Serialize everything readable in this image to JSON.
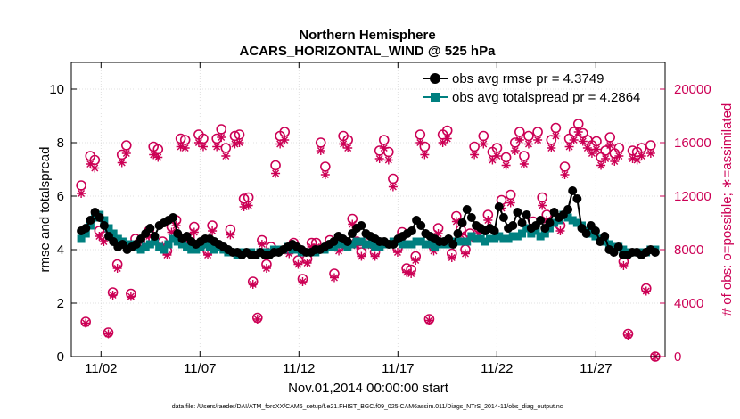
{
  "chart_data": {
    "type": "line",
    "title": "Northern Hemisphere",
    "subtitle": "ACARS_HORIZONTAL_WIND @ 525 hPa",
    "xlabel": "Nov.01,2014 00:00:00 start",
    "ylabel": "rmse and totalspread",
    "y2label": "# of obs: o=possible; ∗=assimilated",
    "footer": "data file: /Users/raeder/DAI/ATM_forcXX/CAM6_setup/f.e21.FHIST_BGC.f09_025.CAM6assim.011/Diags_NTrS_2014-11/obs_diag_output.nc",
    "xlim": [
      0.5,
      30.5
    ],
    "ylim": [
      0,
      11
    ],
    "y2lim": [
      0,
      22000
    ],
    "x_ticks": [
      2,
      7,
      12,
      17,
      22,
      27
    ],
    "x_tick_labels": [
      "11/02",
      "11/07",
      "11/12",
      "11/17",
      "11/22",
      "11/27"
    ],
    "y_ticks": [
      0,
      2,
      4,
      6,
      8,
      10
    ],
    "y_tick_labels": [
      "0",
      "2",
      "4",
      "6",
      "8",
      "10"
    ],
    "y2_ticks": [
      0,
      4000,
      8000,
      12000,
      16000,
      20000
    ],
    "y2_tick_labels": [
      "0",
      "4000",
      "8000",
      "12000",
      "16000",
      "20000"
    ],
    "grid": true,
    "legend_position": "top-right",
    "colors": {
      "rmse": "#000000",
      "spread": "#008080",
      "obs": "#cc0055"
    },
    "series": [
      {
        "name": "obs avg rmse pr = 4.3749",
        "marker": "circle",
        "axis": "left",
        "values": [
          4.7,
          4.8,
          5.1,
          5.4,
          5.2,
          4.9,
          4.5,
          4.3,
          4.1,
          4.2,
          4.0,
          4.1,
          4.2,
          4.4,
          4.6,
          4.8,
          4.5,
          4.9,
          5.0,
          5.1,
          5.2,
          4.6,
          4.4,
          4.5,
          4.3,
          4.2,
          4.3,
          4.4,
          4.4,
          4.3,
          4.2,
          4.1,
          4.0,
          3.9,
          3.9,
          3.8,
          3.9,
          3.8,
          3.8,
          3.9,
          3.8,
          3.8,
          3.9,
          3.9,
          4.0,
          4.1,
          4.2,
          4.1,
          4.0,
          3.9,
          3.9,
          4.0,
          4.0,
          4.1,
          4.2,
          4.3,
          4.5,
          4.4,
          4.3,
          4.6,
          4.8,
          4.9,
          4.6,
          4.5,
          4.4,
          4.3,
          4.3,
          4.2,
          4.2,
          4.4,
          4.5,
          4.6,
          4.7,
          5.1,
          4.9,
          4.6,
          4.5,
          4.4,
          4.3,
          4.3,
          4.4,
          4.2,
          4.6,
          5.0,
          5.5,
          5.2,
          4.9,
          4.8,
          4.7,
          4.8,
          4.7,
          5.6,
          5.2,
          4.8,
          4.9,
          5.4,
          5.0,
          5.3,
          4.8,
          4.9,
          5.1,
          4.8,
          5.0,
          5.4,
          5.2,
          5.3,
          5.5,
          6.2,
          5.9,
          4.8,
          4.6,
          4.9,
          4.7,
          4.3,
          4.5,
          4.0,
          3.9,
          4.1,
          3.8,
          3.8,
          3.9,
          3.9,
          3.8,
          3.9,
          4.0,
          3.9
        ]
      },
      {
        "name": "obs avg totalspread pr = 4.2864",
        "marker": "square",
        "axis": "left",
        "values": [
          4.4,
          4.6,
          4.9,
          5.2,
          5.3,
          5.1,
          4.8,
          4.6,
          4.4,
          4.3,
          4.2,
          4.2,
          4.1,
          4.0,
          4.1,
          4.2,
          4.3,
          4.1,
          4.0,
          4.2,
          4.4,
          4.3,
          4.2,
          4.1,
          4.0,
          4.0,
          4.1,
          4.2,
          4.1,
          4.0,
          4.1,
          4.0,
          3.9,
          3.9,
          3.8,
          3.9,
          3.9,
          3.9,
          3.8,
          3.9,
          3.9,
          3.9,
          4.0,
          4.0,
          4.0,
          4.1,
          4.0,
          4.0,
          3.9,
          3.9,
          3.9,
          3.9,
          4.0,
          4.0,
          4.1,
          4.1,
          4.2,
          4.2,
          4.1,
          4.2,
          4.3,
          4.3,
          4.2,
          4.2,
          4.1,
          4.1,
          4.2,
          4.2,
          4.3,
          4.3,
          4.2,
          4.2,
          4.2,
          4.3,
          4.3,
          4.2,
          4.2,
          4.1,
          4.2,
          4.2,
          4.2,
          4.3,
          4.3,
          4.3,
          4.3,
          4.5,
          4.4,
          4.4,
          4.3,
          4.4,
          4.4,
          4.5,
          4.4,
          4.4,
          4.5,
          4.5,
          4.6,
          4.8,
          4.6,
          4.7,
          4.5,
          4.6,
          4.8,
          5.0,
          5.1,
          5.3,
          5.2,
          5.1,
          5.0,
          4.9,
          4.7,
          4.6,
          4.5,
          4.4,
          4.3,
          4.2,
          4.1,
          4.1,
          4.0,
          3.9,
          3.9,
          3.9,
          3.9,
          3.9,
          4.0,
          4.0
        ]
      },
      {
        "name": "obs possible",
        "marker": "open-circle",
        "axis": "right",
        "values": [
          12800,
          2600,
          15000,
          14700,
          9400,
          9000,
          1800,
          4800,
          6900,
          15100,
          15800,
          4700,
          8800,
          8600,
          8700,
          9400,
          15700,
          15500,
          8600,
          7900,
          9700,
          10200,
          16300,
          16200,
          8900,
          9700,
          16600,
          16300,
          7900,
          9800,
          16300,
          17000,
          15600,
          9500,
          16500,
          16600,
          11800,
          11900,
          5600,
          2900,
          8700,
          6900,
          8200,
          14300,
          16500,
          16800,
          8000,
          8500,
          7200,
          5800,
          7300,
          8500,
          8500,
          16000,
          14200,
          8700,
          6200,
          8200,
          16500,
          16200,
          10300,
          8600,
          7800,
          8600,
          8700,
          7800,
          15400,
          16200,
          15300,
          13300,
          8100,
          9300,
          6600,
          6500,
          7500,
          16600,
          15700,
          2800,
          8200,
          9600,
          16600,
          16900,
          7700,
          10500,
          9500,
          8000,
          9200,
          15700,
          9600,
          16500,
          10600,
          15300,
          15600,
          11700,
          14900,
          12100,
          16000,
          16800,
          15000,
          16500,
          10100,
          16800,
          11900,
          10600,
          16200,
          17100,
          9800,
          14200,
          16300,
          16800,
          17400,
          16700,
          16200,
          15800,
          16100,
          14900,
          15400,
          16400,
          15200,
          15600,
          7100,
          1700,
          15400,
          15300,
          15600,
          5100,
          15800,
          0
        ]
      },
      {
        "name": "obs assimilated",
        "marker": "asterisk",
        "axis": "right",
        "values": [
          12200,
          2500,
          14400,
          14100,
          9000,
          8600,
          1700,
          4600,
          6600,
          14500,
          15200,
          4500,
          8400,
          8200,
          8300,
          9000,
          15100,
          14900,
          8300,
          7600,
          9300,
          9800,
          15700,
          15600,
          8500,
          9300,
          16000,
          15700,
          7600,
          9400,
          15700,
          16400,
          15000,
          9100,
          15900,
          16000,
          11200,
          11300,
          5400,
          2800,
          8400,
          6600,
          7900,
          13700,
          15900,
          16200,
          7700,
          8200,
          6900,
          5600,
          7000,
          8200,
          8200,
          15400,
          13600,
          8400,
          5900,
          7900,
          15900,
          15600,
          9900,
          8300,
          7500,
          8300,
          8400,
          7500,
          14800,
          15600,
          14700,
          12700,
          7800,
          8900,
          6300,
          6200,
          7200,
          16000,
          15100,
          2700,
          7900,
          9200,
          16000,
          16300,
          7400,
          10100,
          9100,
          7700,
          8800,
          15100,
          9200,
          15900,
          10200,
          14700,
          15000,
          11100,
          14300,
          11500,
          15400,
          16200,
          14400,
          15900,
          9700,
          16200,
          11300,
          10200,
          15600,
          16500,
          9400,
          13600,
          15700,
          16200,
          16800,
          16100,
          15600,
          15200,
          15500,
          14300,
          14800,
          15800,
          14600,
          15000,
          6800,
          1600,
          14800,
          14700,
          15000,
          4900,
          15200,
          0
        ]
      }
    ]
  }
}
